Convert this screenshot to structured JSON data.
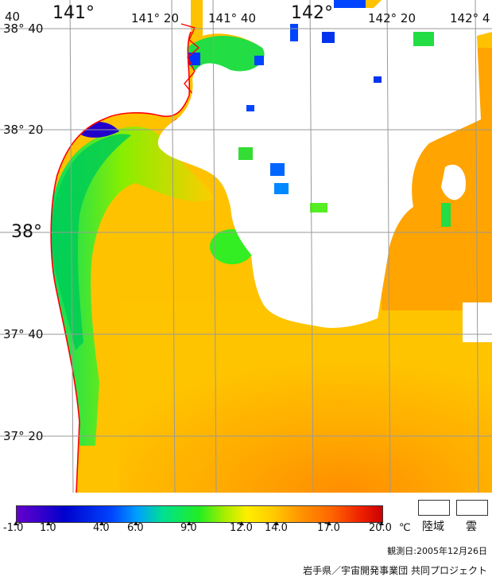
{
  "map": {
    "lat_labels": [
      "38° 40",
      "38° 20",
      "38°",
      "37° 40",
      "37° 20"
    ],
    "lon_labels": [
      "141°",
      "141° 20",
      "141° 40",
      "142°",
      "142° 20",
      "142° 4"
    ],
    "corner_label": "40",
    "land_color": "#ffffff",
    "cloud_color": "#ffffff",
    "coast_color": "#ff0000",
    "grid_color": "#999999"
  },
  "legend": {
    "ticks": [
      "-1.0",
      "1.0",
      "4.0",
      "6.0",
      "9.0",
      "12.0",
      "14.0",
      "17.0",
      "20.0"
    ],
    "unit": "℃",
    "land_label": "陸域",
    "cloud_label": "雲"
  },
  "observation_date": "観測日:2005年12月26日",
  "credit": "岩手県／宇宙開発事業団 共同プロジェクト"
}
